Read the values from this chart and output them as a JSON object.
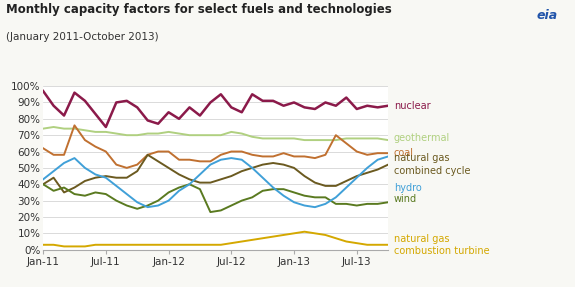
{
  "title": "Monthly capacity factors for select fuels and technologies",
  "subtitle": "(January 2011-October 2013)",
  "background_color": "#f8f8f4",
  "plot_bg_color": "#ffffff",
  "x_labels": [
    "Jan-11",
    "Jul-11",
    "Jan-12",
    "Jul-12",
    "Jan-13",
    "Jul-13"
  ],
  "ylim": [
    0,
    100
  ],
  "yticks": [
    0,
    10,
    20,
    30,
    40,
    50,
    60,
    70,
    80,
    90,
    100
  ],
  "n_months": 34,
  "xtick_pos": [
    0,
    6,
    12,
    18,
    24,
    30
  ],
  "series": [
    {
      "key": "nuclear",
      "color": "#8b1a4a",
      "label": "nuclear",
      "lw": 1.8,
      "values": [
        97,
        88,
        82,
        96,
        91,
        83,
        75,
        90,
        91,
        87,
        79,
        77,
        84,
        80,
        87,
        82,
        90,
        95,
        87,
        84,
        95,
        91,
        91,
        88,
        90,
        87,
        86,
        90,
        88,
        93,
        86,
        88,
        87,
        88
      ]
    },
    {
      "key": "geothermal",
      "color": "#b0d080",
      "label": "geothermal",
      "lw": 1.4,
      "values": [
        74,
        75,
        74,
        74,
        73,
        72,
        72,
        71,
        70,
        70,
        71,
        71,
        72,
        71,
        70,
        70,
        70,
        70,
        72,
        71,
        69,
        68,
        68,
        68,
        68,
        67,
        67,
        67,
        67,
        68,
        68,
        68,
        68,
        67
      ]
    },
    {
      "key": "coal",
      "color": "#c07030",
      "label": "coal",
      "lw": 1.4,
      "values": [
        62,
        58,
        58,
        76,
        67,
        63,
        60,
        52,
        50,
        52,
        58,
        60,
        60,
        55,
        55,
        54,
        54,
        58,
        60,
        60,
        58,
        57,
        57,
        59,
        57,
        57,
        56,
        58,
        70,
        65,
        60,
        58,
        59,
        59
      ]
    },
    {
      "key": "natural_gas_cc",
      "color": "#6b5a20",
      "label_line1": "natural gas",
      "label_line2": "combined cycle",
      "lw": 1.4,
      "values": [
        40,
        44,
        35,
        38,
        42,
        44,
        45,
        44,
        44,
        48,
        58,
        54,
        50,
        46,
        43,
        41,
        41,
        43,
        45,
        48,
        50,
        52,
        53,
        52,
        50,
        45,
        41,
        39,
        39,
        42,
        45,
        47,
        49,
        52
      ]
    },
    {
      "key": "wind",
      "color": "#5a7a20",
      "label": "wind",
      "lw": 1.4,
      "values": [
        40,
        36,
        38,
        34,
        33,
        35,
        34,
        30,
        27,
        25,
        27,
        30,
        35,
        38,
        40,
        37,
        23,
        24,
        27,
        30,
        32,
        36,
        37,
        37,
        35,
        33,
        32,
        32,
        28,
        28,
        27,
        28,
        28,
        29
      ]
    },
    {
      "key": "hydro",
      "color": "#40a0d8",
      "label": "hydro",
      "lw": 1.4,
      "values": [
        43,
        48,
        53,
        56,
        50,
        46,
        44,
        39,
        34,
        29,
        26,
        27,
        30,
        36,
        40,
        46,
        52,
        55,
        56,
        55,
        50,
        44,
        38,
        33,
        29,
        27,
        26,
        28,
        32,
        38,
        44,
        50,
        55,
        57
      ]
    },
    {
      "key": "natural_gas_ct",
      "color": "#d4a800",
      "label_line1": "natural gas",
      "label_line2": "combustion turbine",
      "lw": 1.4,
      "values": [
        3,
        3,
        2,
        2,
        2,
        3,
        3,
        3,
        3,
        3,
        3,
        3,
        3,
        3,
        3,
        3,
        3,
        3,
        4,
        5,
        6,
        7,
        8,
        9,
        10,
        11,
        10,
        9,
        7,
        5,
        4,
        3,
        3,
        3
      ]
    }
  ],
  "legend": [
    {
      "label": "nuclear",
      "color": "#8b1a4a",
      "multiline": false
    },
    {
      "label": "geothermal",
      "color": "#b0d080",
      "multiline": false
    },
    {
      "label": "coal",
      "color": "#c07030",
      "multiline": false
    },
    {
      "label": "natural gas\ncombined cycle",
      "color": "#6b5a20",
      "multiline": true
    },
    {
      "label": "wind",
      "color": "#5a7a20",
      "multiline": false
    },
    {
      "label": "hydro",
      "color": "#40a0d8",
      "multiline": false
    },
    {
      "label": "natural gas\ncombustion turbine",
      "color": "#d4a800",
      "multiline": true
    }
  ],
  "legend_y_vals": [
    88,
    67,
    59,
    52,
    29,
    35,
    3
  ],
  "legend_y_offsets": [
    0,
    0,
    0,
    0,
    0,
    -6,
    0
  ]
}
